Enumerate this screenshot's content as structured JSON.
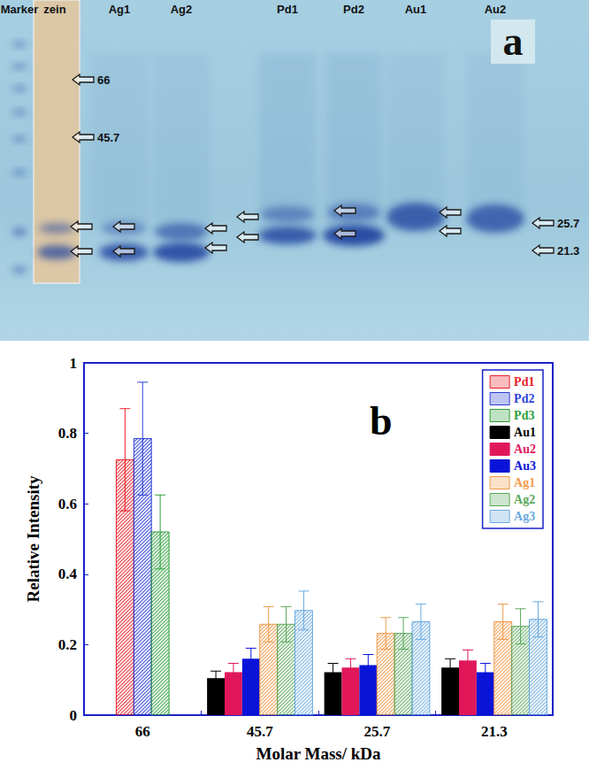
{
  "chart_data": {
    "type": "bar",
    "annotations": [
      "b"
    ],
    "x_label": "Molar Mass/ kDa",
    "y_label": "Relative Intensity",
    "categories": [
      "66",
      "45.7",
      "25.7",
      "21.3"
    ],
    "series": [
      {
        "name": "Pd1",
        "color": "#e8202a",
        "marker": "hatched",
        "values": [
          0.725,
          null,
          null,
          null
        ],
        "errors": [
          0.145,
          null,
          null,
          null
        ]
      },
      {
        "name": "Pd2",
        "color": "#2b3fd6",
        "marker": "hatched",
        "values": [
          0.785,
          null,
          null,
          null
        ],
        "errors": [
          0.16,
          null,
          null,
          null
        ]
      },
      {
        "name": "Pd3",
        "color": "#2e9e3a",
        "marker": "hatched",
        "values": [
          0.52,
          null,
          null,
          null
        ],
        "errors": [
          0.105,
          null,
          null,
          null
        ]
      },
      {
        "name": "Au1",
        "color": "#000000",
        "marker": "solid",
        "values": [
          null,
          0.105,
          0.122,
          0.135
        ],
        "errors": [
          null,
          0.02,
          0.025,
          0.025
        ]
      },
      {
        "name": "Au2",
        "color": "#e0185a",
        "marker": "solid",
        "values": [
          null,
          0.122,
          0.135,
          0.155
        ],
        "errors": [
          null,
          0.025,
          0.025,
          0.03
        ]
      },
      {
        "name": "Au3",
        "color": "#0a14d8",
        "marker": "solid",
        "values": [
          null,
          0.16,
          0.142,
          0.122
        ],
        "errors": [
          null,
          0.03,
          0.03,
          0.025
        ]
      },
      {
        "name": "Ag1",
        "color": "#f09a4a",
        "marker": "hatched",
        "values": [
          null,
          0.258,
          0.232,
          0.265
        ],
        "errors": [
          null,
          0.05,
          0.045,
          0.05
        ]
      },
      {
        "name": "Ag2",
        "color": "#5aa85a",
        "marker": "hatched",
        "values": [
          null,
          0.258,
          0.232,
          0.252
        ],
        "errors": [
          null,
          0.05,
          0.045,
          0.05
        ]
      },
      {
        "name": "Ag3",
        "color": "#6aaae0",
        "marker": "hatched",
        "values": [
          null,
          0.297,
          0.265,
          0.272
        ],
        "errors": [
          null,
          0.055,
          0.05,
          0.05
        ]
      }
    ],
    "ylim": [
      0,
      1
    ],
    "yticks": [
      0,
      0.2,
      0.4,
      0.6,
      0.8,
      1
    ],
    "grid": false,
    "legend": "top-right"
  },
  "gel": {
    "panel_label": "a",
    "lanes": [
      "Marker",
      "zein",
      "Ag1",
      "Ag2",
      "Pd1",
      "Pd2",
      "Au1",
      "Au2"
    ],
    "band_labels": [
      66,
      45.7,
      25.7,
      21.3
    ]
  }
}
